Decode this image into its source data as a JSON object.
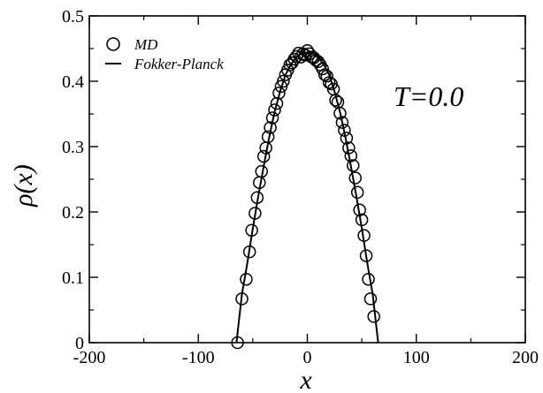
{
  "chart_data": {
    "type": "scatter",
    "title": "",
    "xlabel": "x",
    "ylabel": "ρ(x)",
    "xlim": [
      -200,
      200
    ],
    "ylim": [
      0,
      0.5
    ],
    "x_ticks": [
      "-200",
      "-100",
      "0",
      "100",
      "200"
    ],
    "y_ticks": [
      "0",
      "0.1",
      "0.2",
      "0.3",
      "0.4",
      "0.5"
    ],
    "grid": false,
    "legend_position": "top-left",
    "annotation": "T=0.0",
    "series": [
      {
        "name": "MD",
        "marker": "open-circle",
        "x": [
          -64,
          -60,
          -56,
          -53,
          -51,
          -48,
          -46,
          -44,
          -42,
          -40,
          -38,
          -36,
          -34,
          -32,
          -30,
          -28,
          -26,
          -24,
          -22,
          -20,
          -18,
          -16,
          -14,
          -12,
          -10,
          -8,
          -6,
          -4,
          -2,
          0,
          2,
          4,
          6,
          8,
          10,
          12,
          14,
          16,
          18,
          20,
          22,
          24,
          26,
          28,
          30,
          32,
          34,
          36,
          38,
          40,
          42,
          44,
          46,
          48,
          50,
          52,
          54,
          56,
          58,
          61
        ],
        "y": [
          0.0,
          0.067,
          0.097,
          0.139,
          0.172,
          0.198,
          0.222,
          0.245,
          0.262,
          0.285,
          0.298,
          0.315,
          0.329,
          0.344,
          0.356,
          0.366,
          0.382,
          0.392,
          0.4,
          0.41,
          0.417,
          0.425,
          0.428,
          0.434,
          0.438,
          0.443,
          0.437,
          0.442,
          0.44,
          0.447,
          0.442,
          0.437,
          0.436,
          0.432,
          0.43,
          0.425,
          0.419,
          0.41,
          0.408,
          0.398,
          0.396,
          0.388,
          0.371,
          0.368,
          0.351,
          0.337,
          0.325,
          0.313,
          0.298,
          0.286,
          0.271,
          0.252,
          0.23,
          0.203,
          0.188,
          0.164,
          0.133,
          0.097,
          0.067,
          0.04
        ]
      },
      {
        "name": "Fokker-Planck",
        "marker": "line",
        "x": [
          -65,
          -60,
          -55,
          -50,
          -45,
          -40,
          -35,
          -30,
          -25,
          -20,
          -15,
          -10,
          -5,
          0,
          5,
          10,
          15,
          20,
          25,
          30,
          35,
          40,
          45,
          50,
          55,
          60,
          65
        ],
        "y": [
          0.0,
          0.074,
          0.122,
          0.175,
          0.224,
          0.27,
          0.314,
          0.353,
          0.384,
          0.41,
          0.426,
          0.437,
          0.443,
          0.444,
          0.443,
          0.437,
          0.426,
          0.41,
          0.384,
          0.353,
          0.314,
          0.27,
          0.224,
          0.175,
          0.122,
          0.074,
          0.0
        ]
      }
    ]
  }
}
